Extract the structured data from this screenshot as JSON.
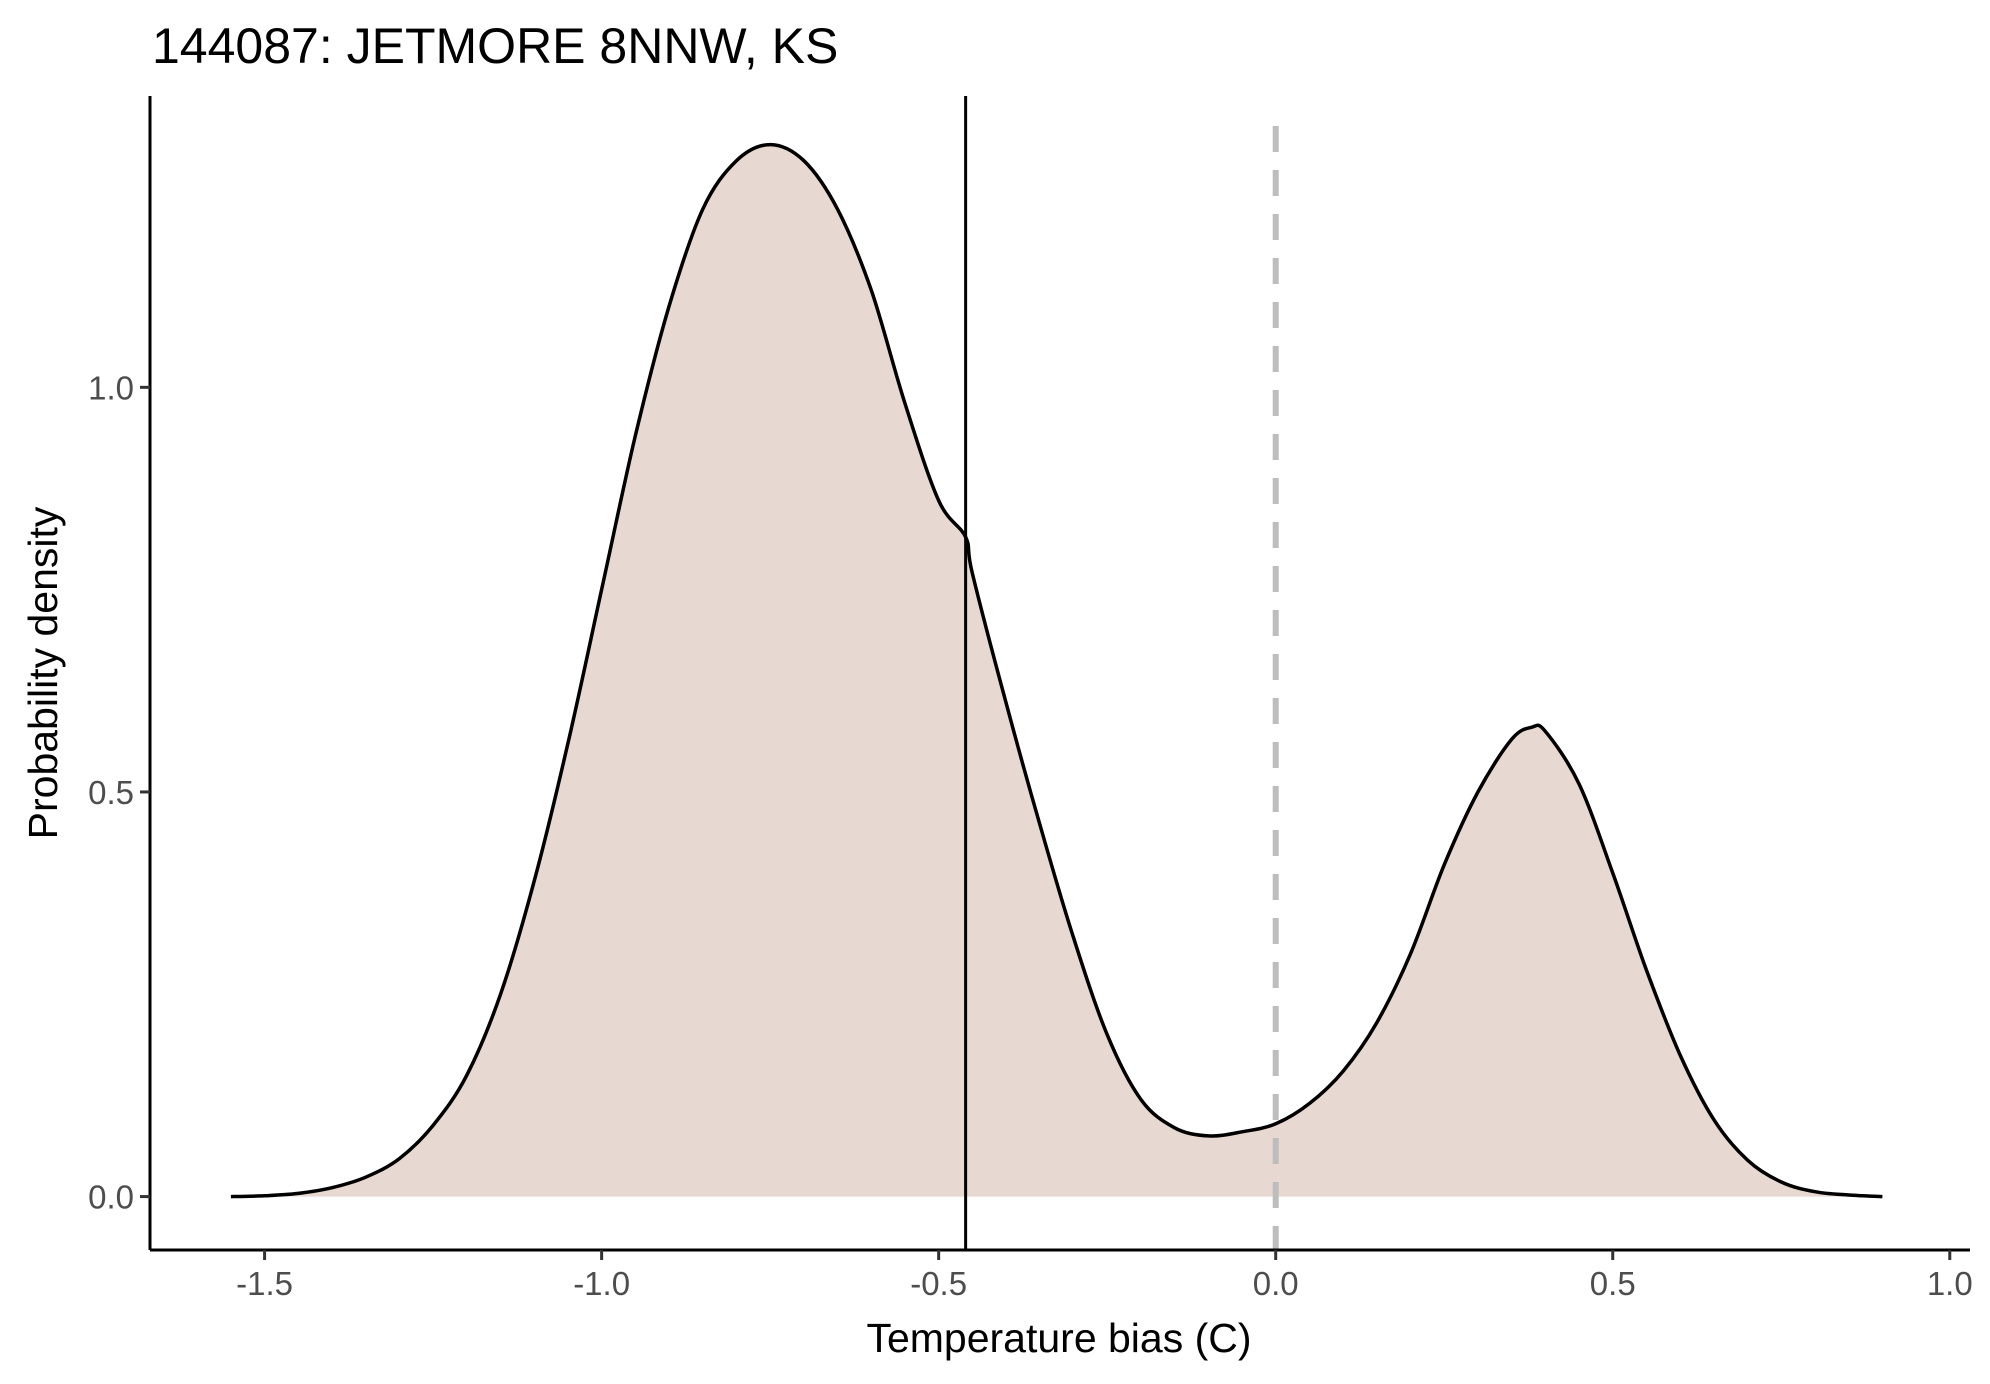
{
  "chart_data": {
    "type": "area",
    "title": "144087: JETMORE 8NNW, KS",
    "xlabel": "Temperature bias (C)",
    "ylabel": "Probability density",
    "xlim": [
      -1.67,
      1.03
    ],
    "ylim": [
      -0.066,
      1.36
    ],
    "x_ticks": [
      -1.5,
      -1.0,
      -0.5,
      0.0,
      0.5,
      1.0
    ],
    "x_tick_labels": [
      "-1.5",
      "-1.0",
      "-0.5",
      "0.0",
      "0.5",
      "1.0"
    ],
    "y_ticks": [
      0.0,
      0.5,
      1.0
    ],
    "y_tick_labels": [
      "0.0",
      "0.5",
      "1.0"
    ],
    "grid": false,
    "legend": "none",
    "series": [
      {
        "x": [
          -1.55,
          -1.5,
          -1.45,
          -1.4,
          -1.35,
          -1.3,
          -1.25,
          -1.2,
          -1.15,
          -1.1,
          -1.05,
          -1.0,
          -0.95,
          -0.9,
          -0.85,
          -0.8,
          -0.75,
          -0.7,
          -0.65,
          -0.6,
          -0.55,
          -0.5,
          -0.46,
          -0.45,
          -0.4,
          -0.35,
          -0.3,
          -0.25,
          -0.2,
          -0.15,
          -0.1,
          -0.05,
          0.0,
          0.05,
          0.1,
          0.15,
          0.2,
          0.25,
          0.3,
          0.35,
          0.38,
          0.4,
          0.45,
          0.5,
          0.55,
          0.6,
          0.65,
          0.7,
          0.75,
          0.8,
          0.85,
          0.9
        ],
        "values": [
          0.0,
          0.001,
          0.004,
          0.011,
          0.024,
          0.047,
          0.088,
          0.15,
          0.25,
          0.39,
          0.56,
          0.75,
          0.94,
          1.1,
          1.22,
          1.28,
          1.3,
          1.28,
          1.22,
          1.12,
          0.98,
          0.86,
          0.815,
          0.77,
          0.61,
          0.46,
          0.32,
          0.2,
          0.12,
          0.085,
          0.075,
          0.08,
          0.09,
          0.115,
          0.155,
          0.215,
          0.3,
          0.41,
          0.5,
          0.565,
          0.58,
          0.575,
          0.51,
          0.4,
          0.28,
          0.175,
          0.095,
          0.045,
          0.018,
          0.006,
          0.002,
          0.0
        ],
        "fill": "#e8d8d2",
        "line": "#000000"
      }
    ],
    "annotations": [
      {
        "type": "vline",
        "x": -0.46,
        "color": "#000000",
        "style": "solid"
      },
      {
        "type": "vline",
        "x": 0.0,
        "color": "#bdbdbd",
        "style": "dashed"
      }
    ]
  }
}
